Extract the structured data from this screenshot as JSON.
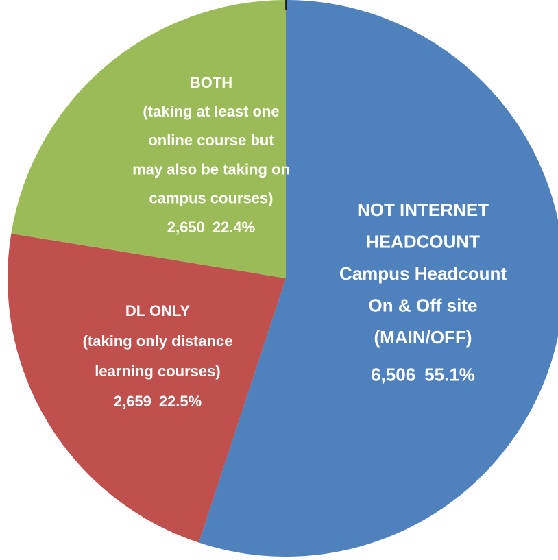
{
  "chart_data": {
    "type": "pie",
    "categories": [
      [
        "NOT INTERNET",
        "HEADCOUNT",
        "Campus Headcount",
        "On & Off site",
        "(MAIN/OFF)"
      ],
      [
        "DL ONLY",
        "(taking only distance",
        "learning courses)"
      ],
      [
        "BOTH",
        "(taking at least one",
        "online course but",
        "may also be taking on",
        "campus courses)"
      ]
    ],
    "values": [
      6506,
      2659,
      2650
    ],
    "value_labels": [
      "6,506",
      "2,659",
      "2,650"
    ],
    "percents": [
      55.1,
      22.5,
      22.4
    ],
    "percent_labels": [
      "55.1%",
      "22.5%",
      "22.4%"
    ],
    "colors": [
      "#4f81bd",
      "#c0504d",
      "#9bbb59"
    ]
  }
}
